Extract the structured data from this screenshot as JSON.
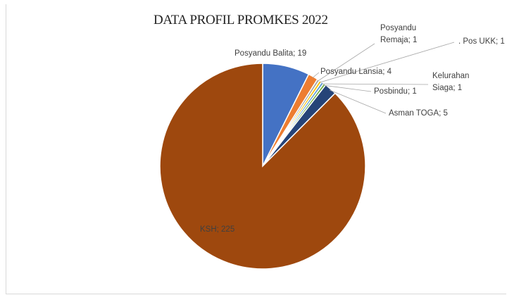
{
  "chart_data": {
    "type": "pie",
    "title": "DATA PROFIL PROMKES 2022",
    "slices": [
      {
        "label": "Posyandu Balita",
        "value": 19,
        "text": "Posyandu Balita; 19",
        "color": "#4472C4"
      },
      {
        "label": "Posyandu Lansia",
        "value": 4,
        "text": "Posyandu Lansia; 4",
        "color": "#ED7D31"
      },
      {
        "label": "Posyandu Remaja",
        "value": 1,
        "text": [
          "Posyandu",
          "Remaja; 1"
        ],
        "color": "#A5A5A5"
      },
      {
        "label": "Pos UKK",
        "value": 1,
        "text": ". Pos UKK; 1",
        "color": "#FFC000"
      },
      {
        "label": "Kelurahan Siaga",
        "value": 1,
        "text": [
          "Kelurahan",
          "Siaga; 1"
        ],
        "color": "#5B9BD5"
      },
      {
        "label": "Posbindu",
        "value": 1,
        "text": "Posbindu; 1",
        "color": "#70AD47"
      },
      {
        "label": "Asman TOGA",
        "value": 5,
        "text": "Asman TOGA; 5",
        "color": "#264478"
      },
      {
        "label": "KSH",
        "value": 225,
        "text": "KSH; 225",
        "color": "#9E480E"
      }
    ],
    "legend": "none",
    "data_labels": "category; value"
  }
}
